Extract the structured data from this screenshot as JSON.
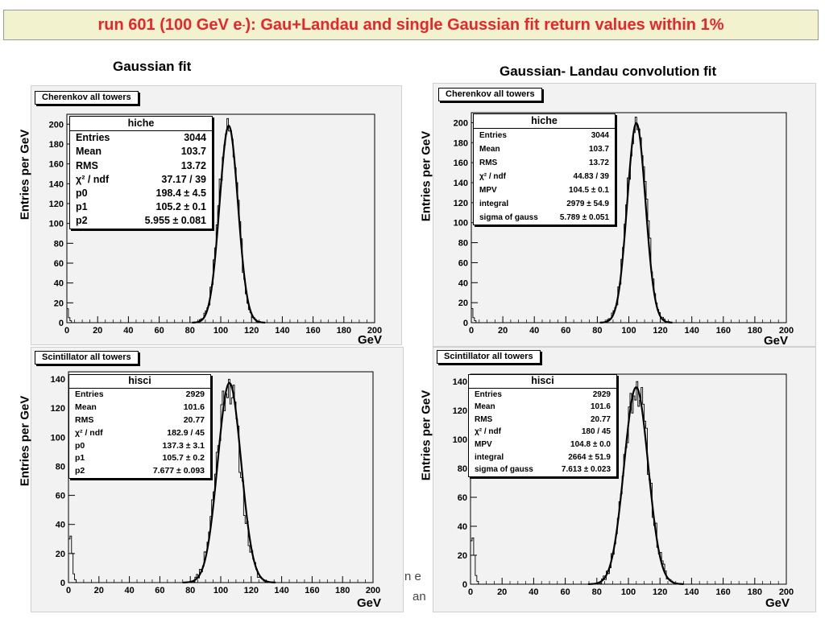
{
  "slide_title_pre": "run 601 (100 GeV e",
  "slide_title_sup": "-",
  "slide_title_post": "): Gau+Landau and single Gaussian fit return values within 1%",
  "left_heading": "Gaussian fit",
  "right_heading": "Gaussian- Landau convolution fit",
  "stray_text_1": "n e",
  "stray_text_2": "an",
  "chart_data": [
    {
      "type": "bar",
      "title": "Cherenkov all towers",
      "xlabel": "GeV",
      "ylabel": "Entries per GeV",
      "xlim": [
        0,
        200
      ],
      "ylim": [
        0,
        210
      ],
      "xticks": [
        "0",
        "20",
        "40",
        "60",
        "80",
        "100",
        "120",
        "140",
        "160",
        "180",
        "200"
      ],
      "yticks": [
        "0",
        "20",
        "40",
        "60",
        "80",
        "100",
        "120",
        "140",
        "160",
        "180",
        "200"
      ],
      "histogram": {
        "name": "hiche",
        "peak_x": 105,
        "peak_height": 203,
        "width": 6.0,
        "low_bins": [
          14,
          5,
          2
        ],
        "seed": 3
      },
      "fit": {
        "type": "gaussian",
        "constant": 198.4,
        "mean": 105.2,
        "sigma": 5.955
      },
      "stats": {
        "name": "hiche",
        "rows": [
          [
            "Entries",
            "3044"
          ],
          [
            "Mean",
            "103.7"
          ],
          [
            "RMS",
            "13.72"
          ],
          [
            "χ² / ndf",
            "37.17 / 39"
          ],
          [
            "p0",
            "198.4 ± 4.5"
          ],
          [
            "p1",
            "105.2 ± 0.1"
          ],
          [
            "p2",
            "5.955 ± 0.081"
          ]
        ]
      }
    },
    {
      "type": "bar",
      "title": "Cherenkov all towers",
      "xlabel": "GeV",
      "ylabel": "Entries per GeV",
      "xlim": [
        0,
        200
      ],
      "ylim": [
        0,
        210
      ],
      "xticks": [
        "0",
        "20",
        "40",
        "60",
        "80",
        "100",
        "120",
        "140",
        "160",
        "180",
        "200"
      ],
      "yticks": [
        "0",
        "20",
        "40",
        "60",
        "80",
        "100",
        "120",
        "140",
        "160",
        "180",
        "200"
      ],
      "histogram": {
        "name": "hiche",
        "peak_x": 105,
        "peak_height": 203,
        "width": 6.0,
        "low_bins": [
          14,
          5,
          2
        ],
        "seed": 3
      },
      "fit": {
        "type": "gaussian-landau",
        "constant": 199.5,
        "mean": 104.8,
        "sigma": 5.789
      },
      "stats": {
        "name": "hiche",
        "rows": [
          [
            "Entries",
            "3044"
          ],
          [
            "Mean",
            "103.7"
          ],
          [
            "RMS",
            "13.72"
          ],
          [
            "χ² / ndf",
            "44.83 / 39"
          ],
          [
            "MPV",
            "104.5 ± 0.1"
          ],
          [
            "integral",
            "2979 ± 54.9"
          ],
          [
            "sigma of gauss",
            "5.789 ± 0.051"
          ]
        ]
      }
    },
    {
      "type": "bar",
      "title": "Scintillator all towers",
      "xlabel": "GeV",
      "ylabel": "Entries per GeV",
      "xlim": [
        0,
        200
      ],
      "ylim": [
        0,
        145
      ],
      "xticks": [
        "0",
        "20",
        "40",
        "60",
        "80",
        "100",
        "120",
        "140",
        "160",
        "180",
        "200"
      ],
      "yticks": [
        "0",
        "20",
        "40",
        "60",
        "80",
        "100",
        "120",
        "140"
      ],
      "histogram": {
        "name": "hisci",
        "peak_x": 105,
        "peak_height": 138,
        "width": 7.7,
        "low_bins": [
          30,
          32,
          20,
          6,
          2
        ],
        "seed": 11
      },
      "fit": {
        "type": "gaussian",
        "constant": 137.3,
        "mean": 105.7,
        "sigma": 7.677
      },
      "stats": {
        "name": "hisci",
        "rows": [
          [
            "Entries",
            "2929"
          ],
          [
            "Mean",
            "101.6"
          ],
          [
            "RMS",
            "20.77"
          ],
          [
            "χ² / ndf",
            "182.9 / 45"
          ],
          [
            "p0",
            "137.3 ± 3.1"
          ],
          [
            "p1",
            "105.7 ± 0.2"
          ],
          [
            "p2",
            "7.677 ± 0.093"
          ]
        ]
      }
    },
    {
      "type": "bar",
      "title": "Scintillator all towers",
      "xlabel": "GeV",
      "ylabel": "Entries per GeV",
      "xlim": [
        0,
        200
      ],
      "ylim": [
        0,
        145
      ],
      "xticks": [
        "0",
        "20",
        "40",
        "60",
        "80",
        "100",
        "120",
        "140",
        "160",
        "180",
        "200"
      ],
      "yticks": [
        "0",
        "20",
        "40",
        "60",
        "80",
        "100",
        "120",
        "140"
      ],
      "histogram": {
        "name": "hisci",
        "peak_x": 105,
        "peak_height": 138,
        "width": 7.7,
        "low_bins": [
          30,
          32,
          20,
          6,
          2
        ],
        "seed": 11
      },
      "fit": {
        "type": "gaussian-landau",
        "constant": 136,
        "mean": 104.9,
        "sigma": 7.613
      },
      "stats": {
        "name": "hisci",
        "rows": [
          [
            "Entries",
            "2929"
          ],
          [
            "Mean",
            "101.6"
          ],
          [
            "RMS",
            "20.77"
          ],
          [
            "χ² / ndf",
            "180 / 45"
          ],
          [
            "MPV",
            "104.8 ± 0.0"
          ],
          [
            "integral",
            "2664 ± 51.9"
          ],
          [
            "sigma of gauss",
            "7.613 ± 0.023"
          ]
        ]
      }
    }
  ]
}
